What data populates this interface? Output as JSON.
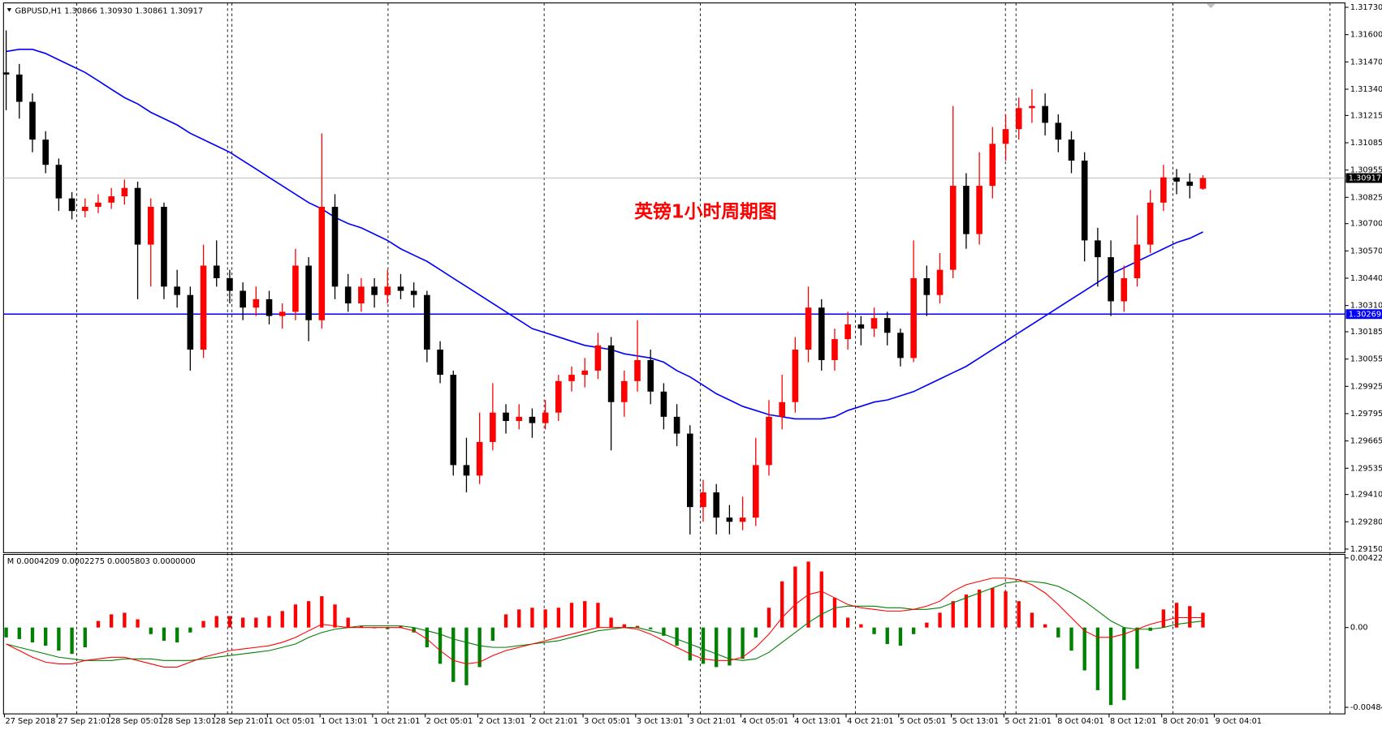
{
  "chart_data": [
    {
      "type": "candlestick",
      "title": "GBPUSD,H1  1.30866 1.30930 1.30861 1.30917",
      "annotation": "英镑1小时周期图",
      "annotation_color": "#ff0000",
      "up_color": "#ff0000",
      "down_color": "#000000",
      "xlim": [
        -0.2,
        101.8
      ],
      "ylim": [
        1.29133,
        1.31751
      ],
      "yticks": [
        {
          "value": 1.3173,
          "label": "1.31730"
        },
        {
          "value": 1.316,
          "label": "1.31600"
        },
        {
          "value": 1.3147,
          "label": "1.31470"
        },
        {
          "value": 1.3134,
          "label": "1.31340"
        },
        1.31215,
        1.31085,
        1.30955,
        1.30825,
        {
          "value": 1.307,
          "label": "1.30700"
        },
        {
          "value": 1.3057,
          "label": "1.30570"
        },
        {
          "value": 1.3044,
          "label": "1.30440"
        },
        {
          "value": 1.3031,
          "label": "1.30310"
        },
        1.30185,
        1.30055,
        1.29925,
        1.29795,
        1.29665,
        1.29535,
        {
          "value": 1.2941,
          "label": "1.29410"
        },
        {
          "value": 1.2928,
          "label": "1.29280"
        },
        {
          "value": 1.2915,
          "label": "1.29150"
        }
      ],
      "last_price": 1.30917,
      "hline": {
        "value": 1.30269,
        "color": "#0000ff"
      },
      "ohlc": [
        [
          1.3142,
          1.3162,
          1.3124,
          1.3141
        ],
        [
          1.3141,
          1.3146,
          1.312,
          1.3128
        ],
        [
          1.3128,
          1.3132,
          1.3104,
          1.311
        ],
        [
          1.311,
          1.3114,
          1.3094,
          1.3098
        ],
        [
          1.3098,
          1.3101,
          1.3076,
          1.3082
        ],
        [
          1.3082,
          1.3085,
          1.3072,
          1.3076
        ],
        [
          1.3076,
          1.3082,
          1.3073,
          1.3078
        ],
        [
          1.3078,
          1.3084,
          1.3075,
          1.308
        ],
        [
          1.308,
          1.3087,
          1.3077,
          1.3083
        ],
        [
          1.3083,
          1.3091,
          1.3079,
          1.3087
        ],
        [
          1.3087,
          1.309,
          1.3034,
          1.306
        ],
        [
          1.306,
          1.3082,
          1.304,
          1.3078
        ],
        [
          1.3078,
          1.308,
          1.3034,
          1.304
        ],
        [
          1.304,
          1.3048,
          1.303,
          1.3036
        ],
        [
          1.3036,
          1.304,
          1.3,
          1.301
        ],
        [
          1.301,
          1.306,
          1.3006,
          1.305
        ],
        [
          1.305,
          1.3062,
          1.304,
          1.3044
        ],
        [
          1.3044,
          1.3048,
          1.3032,
          1.3038
        ],
        [
          1.3038,
          1.3042,
          1.3024,
          1.303
        ],
        [
          1.303,
          1.304,
          1.3026,
          1.3034
        ],
        [
          1.3034,
          1.3038,
          1.3022,
          1.3026
        ],
        [
          1.3026,
          1.3032,
          1.302,
          1.3028
        ],
        [
          1.3028,
          1.3058,
          1.3024,
          1.305
        ],
        [
          1.305,
          1.3054,
          1.3014,
          1.3024
        ],
        [
          1.3024,
          1.3113,
          1.302,
          1.3078
        ],
        [
          1.3078,
          1.3084,
          1.3034,
          1.304
        ],
        [
          1.304,
          1.3046,
          1.3028,
          1.3032
        ],
        [
          1.3032,
          1.3044,
          1.3028,
          1.304
        ],
        [
          1.304,
          1.3044,
          1.303,
          1.3036
        ],
        [
          1.3036,
          1.3048,
          1.3032,
          1.304
        ],
        [
          1.304,
          1.3046,
          1.3034,
          1.3038
        ],
        [
          1.3038,
          1.3042,
          1.303,
          1.3036
        ],
        [
          1.3036,
          1.3038,
          1.3004,
          1.301
        ],
        [
          1.301,
          1.3014,
          1.2994,
          1.2998
        ],
        [
          1.2998,
          1.3,
          1.295,
          1.2955
        ],
        [
          1.2955,
          1.2968,
          1.2942,
          1.295
        ],
        [
          1.295,
          1.298,
          1.2946,
          1.2966
        ],
        [
          1.2966,
          1.2994,
          1.2962,
          1.298
        ],
        [
          1.298,
          1.2984,
          1.297,
          1.2976
        ],
        [
          1.2976,
          1.2984,
          1.2972,
          1.2978
        ],
        [
          1.2978,
          1.2982,
          1.2968,
          1.2975
        ],
        [
          1.2975,
          1.2986,
          1.2972,
          1.298
        ],
        [
          1.298,
          1.2998,
          1.2976,
          1.2995
        ],
        [
          1.2995,
          1.3002,
          1.299,
          1.2998
        ],
        [
          1.2998,
          1.3006,
          1.2992,
          1.3
        ],
        [
          1.3,
          1.3018,
          1.2996,
          1.3012
        ],
        [
          1.3012,
          1.3016,
          1.2962,
          1.2985
        ],
        [
          1.2985,
          1.3,
          1.2978,
          1.2995
        ],
        [
          1.2995,
          1.3024,
          1.299,
          1.3005
        ],
        [
          1.3005,
          1.301,
          1.2984,
          1.299
        ],
        [
          1.299,
          1.2994,
          1.2972,
          1.2978
        ],
        [
          1.2978,
          1.2984,
          1.2964,
          1.297
        ],
        [
          1.297,
          1.2974,
          1.2922,
          1.2935
        ],
        [
          1.2935,
          1.2948,
          1.2928,
          1.2942
        ],
        [
          1.2942,
          1.2946,
          1.2922,
          1.293
        ],
        [
          1.293,
          1.2936,
          1.2922,
          1.2928
        ],
        [
          1.2928,
          1.294,
          1.2924,
          1.293
        ],
        [
          1.293,
          1.2968,
          1.2926,
          1.2955
        ],
        [
          1.2955,
          1.2986,
          1.295,
          1.2978
        ],
        [
          1.2978,
          1.2998,
          1.2972,
          1.2985
        ],
        [
          1.2985,
          1.3016,
          1.298,
          1.301
        ],
        [
          1.301,
          1.304,
          1.3004,
          1.303
        ],
        [
          1.303,
          1.3034,
          1.3,
          1.3005
        ],
        [
          1.3005,
          1.302,
          1.3,
          1.3015
        ],
        [
          1.3015,
          1.3028,
          1.301,
          1.3022
        ],
        [
          1.3022,
          1.3026,
          1.3012,
          1.302
        ],
        [
          1.302,
          1.303,
          1.3016,
          1.3025
        ],
        [
          1.3025,
          1.3028,
          1.3012,
          1.3018
        ],
        [
          1.3018,
          1.302,
          1.3002,
          1.3006
        ],
        [
          1.3006,
          1.3062,
          1.3004,
          1.3044
        ],
        [
          1.3044,
          1.305,
          1.3026,
          1.3036
        ],
        [
          1.3036,
          1.3056,
          1.3032,
          1.3048
        ],
        [
          1.3048,
          1.3126,
          1.3044,
          1.3088
        ],
        [
          1.3088,
          1.3094,
          1.3058,
          1.3065
        ],
        [
          1.3065,
          1.3104,
          1.306,
          1.3088
        ],
        [
          1.3088,
          1.3116,
          1.3082,
          1.3108
        ],
        [
          1.3108,
          1.3122,
          1.31,
          1.3115
        ],
        [
          1.3115,
          1.313,
          1.311,
          1.3125
        ],
        [
          1.3125,
          1.3134,
          1.3118,
          1.3126
        ],
        [
          1.3126,
          1.3132,
          1.3112,
          1.3118
        ],
        [
          1.3118,
          1.3122,
          1.3104,
          1.311
        ],
        [
          1.311,
          1.3114,
          1.3094,
          1.31
        ],
        [
          1.31,
          1.3104,
          1.3052,
          1.3062
        ],
        [
          1.3062,
          1.3068,
          1.304,
          1.3054
        ],
        [
          1.3054,
          1.3062,
          1.3026,
          1.3033
        ],
        [
          1.3033,
          1.305,
          1.3028,
          1.3044
        ],
        [
          1.3044,
          1.3074,
          1.304,
          1.306
        ],
        [
          1.306,
          1.3086,
          1.3056,
          1.308
        ],
        [
          1.308,
          1.3098,
          1.3076,
          1.3092
        ],
        [
          1.3092,
          1.3096,
          1.3084,
          1.309
        ],
        [
          1.309,
          1.3094,
          1.3082,
          1.3088
        ],
        [
          1.30866,
          1.3093,
          1.30861,
          1.30917
        ]
      ],
      "ma": {
        "color": "#0000ff",
        "values": [
          1.3152,
          1.3153,
          1.3153,
          1.3151,
          1.3148,
          1.3145,
          1.3142,
          1.3138,
          1.3134,
          1.313,
          1.3127,
          1.3123,
          1.312,
          1.3117,
          1.3113,
          1.311,
          1.3107,
          1.3104,
          1.31,
          1.3096,
          1.3092,
          1.3088,
          1.3084,
          1.308,
          1.3077,
          1.3073,
          1.307,
          1.3068,
          1.3065,
          1.3062,
          1.3058,
          1.3055,
          1.3052,
          1.3048,
          1.3044,
          1.304,
          1.3036,
          1.3032,
          1.3028,
          1.3024,
          1.302,
          1.3018,
          1.3016,
          1.3014,
          1.3012,
          1.3011,
          1.301,
          1.3008,
          1.3007,
          1.3006,
          1.3004,
          1.3,
          1.2997,
          1.2993,
          1.2989,
          1.2986,
          1.2983,
          1.2981,
          1.2979,
          1.2978,
          1.2977,
          1.2977,
          1.2977,
          1.2978,
          1.2981,
          1.2983,
          1.2985,
          1.2986,
          1.2988,
          1.299,
          1.2993,
          1.2996,
          1.2999,
          1.3002,
          1.3006,
          1.301,
          1.3014,
          1.3018,
          1.3022,
          1.3026,
          1.303,
          1.3034,
          1.3038,
          1.3042,
          1.3046,
          1.3049,
          1.3052,
          1.3055,
          1.3058,
          1.3061,
          1.3063,
          1.3066
        ]
      }
    },
    {
      "type": "macd",
      "title": "M 0.0004209 0.0002275 0.0005803 0.0000000",
      "xlim": [
        -0.2,
        101.8
      ],
      "ylim": [
        -0.00513,
        0.004436
      ],
      "yticks": [
        0.004222,
        {
          "value": 0,
          "label": "0.00"
        },
        -0.00484
      ],
      "xticks": [
        {
          "value": 0,
          "label": "27 Sep 2018"
        },
        {
          "value": 4,
          "label": "27 Sep 21:01"
        },
        {
          "value": 8,
          "label": "28 Sep 05:01"
        },
        {
          "value": 12,
          "label": "28 Sep 13:01"
        },
        {
          "value": 16,
          "label": "28 Sep 21:01"
        },
        {
          "value": 20,
          "label": "1 Oct 05:01"
        },
        {
          "value": 24,
          "label": "1 Oct 13:01"
        },
        {
          "value": 28,
          "label": "1 Oct 21:01"
        },
        {
          "value": 32,
          "label": "2 Oct 05:01"
        },
        {
          "value": 36,
          "label": "2 Oct 13:01"
        },
        {
          "value": 40,
          "label": "2 Oct 21:01"
        },
        {
          "value": 44,
          "label": "3 Oct 05:01"
        },
        {
          "value": 48,
          "label": "3 Oct 13:01"
        },
        {
          "value": 52,
          "label": "3 Oct 21:01"
        },
        {
          "value": 56,
          "label": "4 Oct 05:01"
        },
        {
          "value": 60,
          "label": "4 Oct 13:01"
        },
        {
          "value": 64,
          "label": "4 Oct 21:01"
        },
        {
          "value": 68,
          "label": "5 Oct 05:01"
        },
        {
          "value": 72,
          "label": "5 Oct 13:01"
        },
        {
          "value": 76,
          "label": "5 Oct 21:01"
        },
        {
          "value": 80,
          "label": "8 Oct 04:01"
        },
        {
          "value": 84,
          "label": "8 Oct 12:01"
        },
        {
          "value": 88,
          "label": "8 Oct 20:01"
        },
        {
          "value": 92,
          "label": "9 Oct 04:01"
        }
      ],
      "histogram": {
        "pos_color": "#ff0000",
        "neg_color": "#008000",
        "values": [
          -0.0006,
          -0.0007,
          -0.0009,
          -0.0011,
          -0.0014,
          -0.0016,
          -0.0012,
          0.0004,
          0.0008,
          0.0009,
          0.0005,
          -0.0004,
          -0.0008,
          -0.0009,
          -0.0003,
          0.0004,
          0.0007,
          0.0007,
          0.0006,
          0.0006,
          0.0007,
          0.001,
          0.0014,
          0.0016,
          0.0019,
          0.0014,
          0.0006,
          0.0001,
          0,
          -0.0001,
          0.0001,
          -0.0003,
          -0.0012,
          -0.0022,
          -0.0033,
          -0.0035,
          -0.0024,
          -0.0008,
          0.0008,
          0.0011,
          0.0012,
          0.0011,
          0.0012,
          0.0015,
          0.0016,
          0.0015,
          0.0006,
          0.0002,
          0.0001,
          -0.0001,
          -0.0005,
          -0.0011,
          -0.002,
          -0.0022,
          -0.0024,
          -0.0023,
          -0.0019,
          -0.0006,
          0.0012,
          0.0028,
          0.0037,
          0.004,
          0.0034,
          0.0018,
          0.0006,
          0.0002,
          -0.0004,
          -0.001,
          -0.0011,
          -0.0004,
          0.0003,
          0.0009,
          0.0016,
          0.002,
          0.0023,
          0.0024,
          0.0022,
          0.0016,
          0.0009,
          0.0002,
          -0.0006,
          -0.0014,
          -0.0026,
          -0.0038,
          -0.0047,
          -0.0044,
          -0.0025,
          -0.0002,
          0.0011,
          0.0015,
          0.0013,
          0.0009
        ]
      },
      "lines": [
        {
          "color": "#008000",
          "values": [
            -0.001,
            -0.0012,
            -0.0014,
            -0.0016,
            -0.0018,
            -0.0019,
            -0.002,
            -0.002,
            -0.002,
            -0.0019,
            -0.0019,
            -0.0019,
            -0.002,
            -0.002,
            -0.002,
            -0.0019,
            -0.0018,
            -0.0017,
            -0.0016,
            -0.0015,
            -0.0014,
            -0.0012,
            -0.001,
            -0.0006,
            -0.0003,
            -0.0001,
            0,
            0.0001,
            0.0001,
            0.0001,
            0.0001,
            0,
            -0.0002,
            -0.0004,
            -0.0007,
            -0.0009,
            -0.0011,
            -0.0012,
            -0.0012,
            -0.0011,
            -0.001,
            -0.0009,
            -0.0008,
            -0.0006,
            -0.0004,
            -0.0002,
            -0.0001,
            0,
            0,
            -0.0002,
            -0.0004,
            -0.0007,
            -0.001,
            -0.0013,
            -0.0016,
            -0.0019,
            -0.002,
            -0.0019,
            -0.0015,
            -0.0009,
            -0.0003,
            0.0003,
            0.0008,
            0.0012,
            0.0013,
            0.0013,
            0.0013,
            0.0012,
            0.0012,
            0.0011,
            0.0011,
            0.0012,
            0.0015,
            0.0018,
            0.0021,
            0.0024,
            0.0027,
            0.0028,
            0.0028,
            0.0027,
            0.0025,
            0.0021,
            0.0016,
            0.001,
            0.0004,
            0,
            -0.0001,
            -0.0001,
            0,
            0.0002,
            0.0003,
            0.0004
          ]
        },
        {
          "color": "#ff0000",
          "values": [
            -0.001,
            -0.0014,
            -0.0018,
            -0.0021,
            -0.0022,
            -0.0022,
            -0.002,
            -0.0019,
            -0.0018,
            -0.0018,
            -0.002,
            -0.0022,
            -0.0024,
            -0.0024,
            -0.0021,
            -0.0018,
            -0.0016,
            -0.0014,
            -0.0013,
            -0.0012,
            -0.0011,
            -0.0009,
            -0.0006,
            -0.0002,
            0.0002,
            0.0001,
            0,
            0,
            0,
            0,
            0,
            -0.0002,
            -0.0007,
            -0.0014,
            -0.002,
            -0.0022,
            -0.0021,
            -0.0017,
            -0.0014,
            -0.0012,
            -0.001,
            -0.0008,
            -0.0006,
            -0.0004,
            -0.0002,
            0,
            0,
            0,
            -0.0001,
            -0.0004,
            -0.0008,
            -0.0012,
            -0.0016,
            -0.0019,
            -0.002,
            -0.002,
            -0.0018,
            -0.0012,
            -0.0004,
            0.0006,
            0.0014,
            0.002,
            0.0022,
            0.0018,
            0.0014,
            0.0012,
            0.0011,
            0.001,
            0.001,
            0.0011,
            0.0013,
            0.0016,
            0.0022,
            0.0026,
            0.0028,
            0.003,
            0.003,
            0.0029,
            0.0026,
            0.0021,
            0.0014,
            0.0006,
            -0.0002,
            -0.0006,
            -0.0006,
            -0.0004,
            -0.0001,
            0.0002,
            0.0004,
            0.0006,
            0.0006,
            0.0006
          ]
        }
      ]
    }
  ]
}
